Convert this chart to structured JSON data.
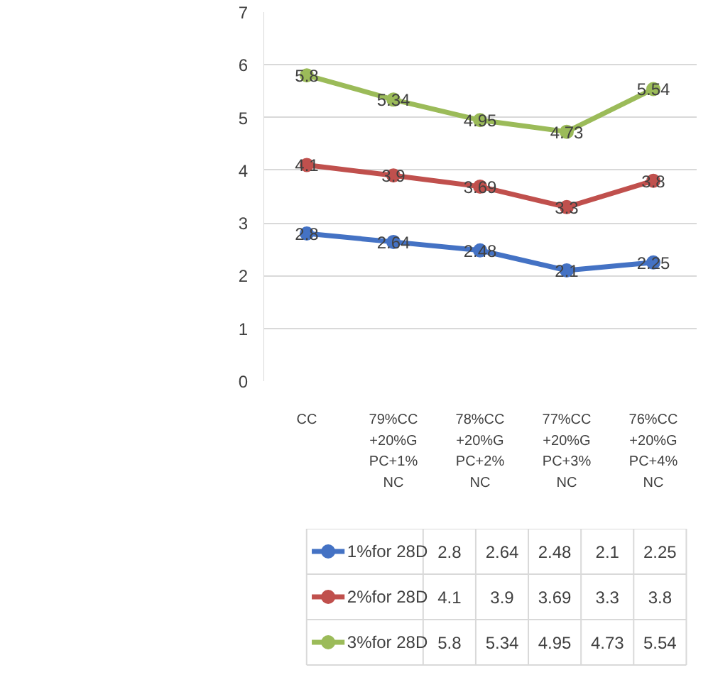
{
  "chart_data": {
    "type": "line",
    "categories": [
      "CC",
      "79%CC+20%GPC+1%NC",
      "78%CC+20%GPC+2%NC",
      "77%CC+20%GPC+3%NC",
      "76%CC+20%GPC+4%NC"
    ],
    "series": [
      {
        "name": "1%for 28D",
        "color": "#4472c4",
        "values": [
          2.8,
          2.64,
          2.48,
          2.1,
          2.25
        ],
        "value_labels": [
          "2.8",
          "2.64",
          "2.48",
          "2.1",
          "2.25"
        ]
      },
      {
        "name": "2%for 28D",
        "color": "#c0504d",
        "values": [
          4.1,
          3.9,
          3.69,
          3.3,
          3.8
        ],
        "value_labels": [
          "4.1",
          "3.9",
          "3.69",
          "3.3",
          "3.8"
        ]
      },
      {
        "name": "3%for 28D",
        "color": "#9bbb59",
        "values": [
          5.8,
          5.34,
          4.95,
          4.73,
          5.54
        ],
        "value_labels": [
          "5.8",
          "5.34",
          "4.95",
          "4.73",
          "5.54"
        ]
      }
    ],
    "ylim": [
      0,
      7
    ],
    "yticks": [
      0,
      1,
      2,
      3,
      4,
      5,
      6,
      7
    ],
    "grid": "y",
    "legend": "bottom",
    "marker": "circle",
    "line_style": "solid",
    "data_labels": true
  }
}
